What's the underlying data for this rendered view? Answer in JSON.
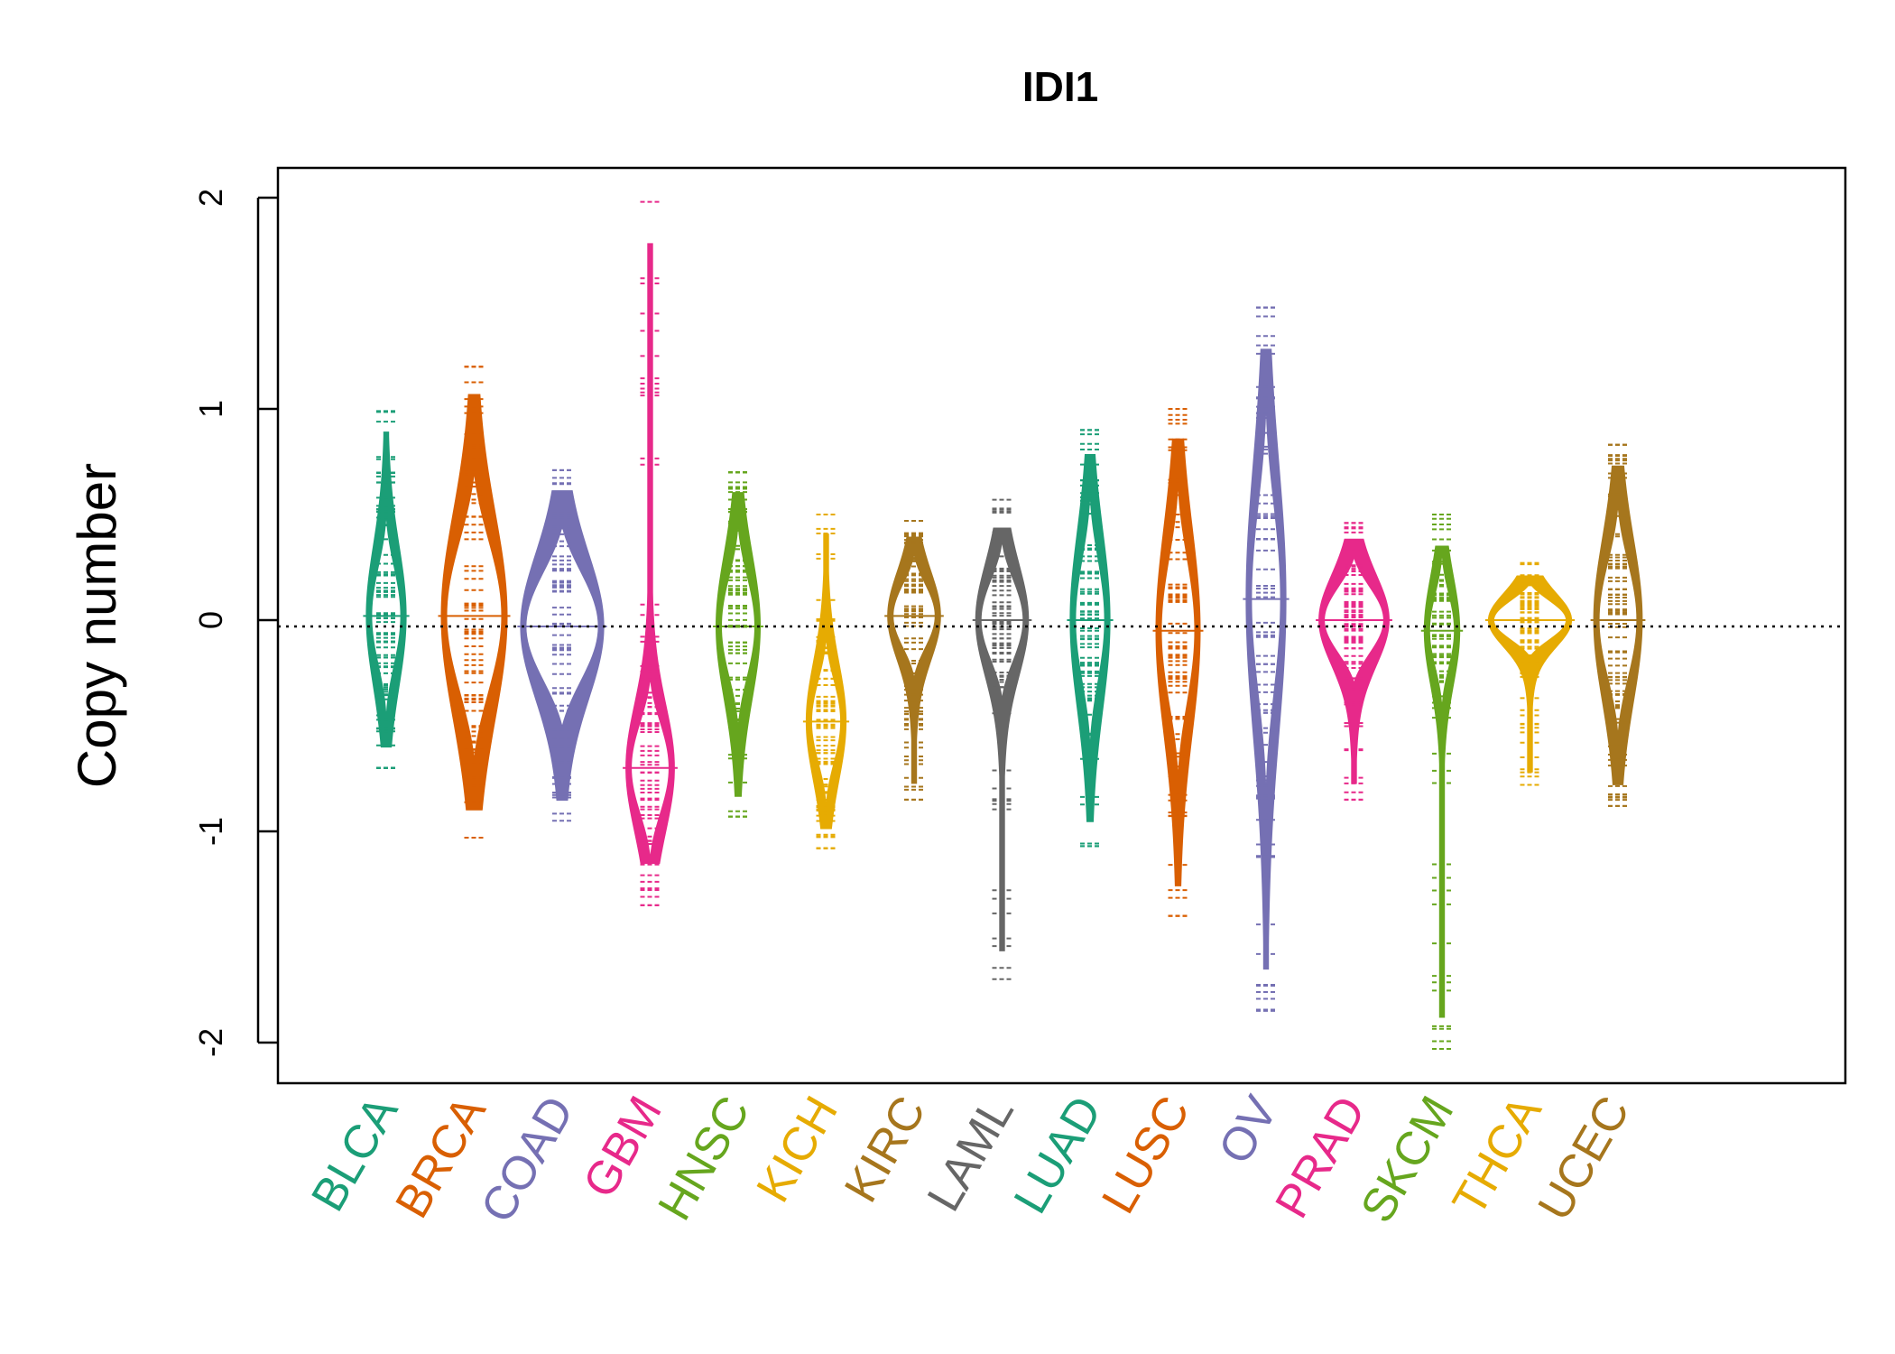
{
  "chart_data": {
    "type": "beanplot",
    "title": "IDI1",
    "ylabel": "Copy number",
    "xlabel": "",
    "ylim": [
      -2.2,
      2.1
    ],
    "yticks": [
      -2,
      -1,
      0,
      1,
      2
    ],
    "reference_line": -0.03,
    "grid": false,
    "legend": "none",
    "categories": [
      "BLCA",
      "BRCA",
      "COAD",
      "GBM",
      "HNSC",
      "KICH",
      "KIRC",
      "LAML",
      "LUAD",
      "LUSC",
      "OV",
      "PRAD",
      "SKCM",
      "THCA",
      "UCEC"
    ],
    "series": [
      {
        "name": "BLCA",
        "color": "#1B9E77",
        "min": -0.7,
        "max": 0.99,
        "mode": 0.02,
        "width": 0.45
      },
      {
        "name": "BRCA",
        "color": "#D95F02",
        "min": -1.03,
        "max": 1.2,
        "mode": 0.02,
        "width": 0.75
      },
      {
        "name": "COAD",
        "color": "#7570B3",
        "min": -0.95,
        "max": 0.71,
        "mode": -0.03,
        "width": 0.95
      },
      {
        "name": "GBM",
        "color": "#E7298A",
        "min": -1.35,
        "max": 1.98,
        "mode": -0.7,
        "width": 0.55
      },
      {
        "name": "HNSC",
        "color": "#66A61E",
        "min": -0.93,
        "max": 0.7,
        "mode": -0.03,
        "width": 0.5
      },
      {
        "name": "KICH",
        "color": "#E6AB02",
        "min": -1.08,
        "max": 0.5,
        "mode": -0.48,
        "width": 0.45
      },
      {
        "name": "KIRC",
        "color": "#A6761D",
        "min": -0.85,
        "max": 0.47,
        "mode": 0.02,
        "width": 0.6
      },
      {
        "name": "LAML",
        "color": "#666666",
        "min": -1.7,
        "max": 0.57,
        "mode": 0.0,
        "width": 0.6
      },
      {
        "name": "LUAD",
        "color": "#1B9E77",
        "min": -1.07,
        "max": 0.9,
        "mode": 0.0,
        "width": 0.45
      },
      {
        "name": "LUSC",
        "color": "#D95F02",
        "min": -1.4,
        "max": 1.0,
        "mode": -0.05,
        "width": 0.5
      },
      {
        "name": "OV",
        "color": "#7570B3",
        "min": -1.85,
        "max": 1.48,
        "mode": 0.1,
        "width": 0.45
      },
      {
        "name": "PRAD",
        "color": "#E7298A",
        "min": -0.85,
        "max": 0.46,
        "mode": 0.0,
        "width": 0.8
      },
      {
        "name": "SKCM",
        "color": "#66A61E",
        "min": -2.03,
        "max": 0.5,
        "mode": -0.05,
        "width": 0.4
      },
      {
        "name": "THCA",
        "color": "#E6AB02",
        "min": -0.78,
        "max": 0.27,
        "mode": 0.0,
        "width": 0.95
      },
      {
        "name": "UCEC",
        "color": "#A6761D",
        "min": -0.88,
        "max": 0.83,
        "mode": 0.0,
        "width": 0.55
      }
    ]
  }
}
